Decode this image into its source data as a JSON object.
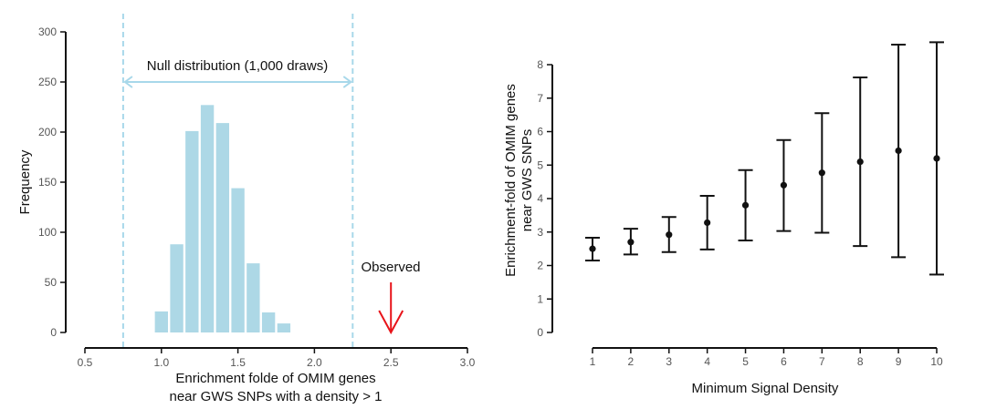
{
  "chart_data": [
    {
      "type": "bar",
      "title": "",
      "xlabel": [
        "Enrichment folde of OMIM genes",
        "near GWS SNPs with a density > 1"
      ],
      "ylabel": "Frequency",
      "xlim": [
        0.5,
        3.0
      ],
      "ylim": [
        0,
        300
      ],
      "x_ticks": [
        "0.5",
        "1.0",
        "1.5",
        "2.0",
        "2.5",
        "3.0"
      ],
      "y_ticks": [
        "0",
        "50",
        "100",
        "150",
        "200",
        "250",
        "300"
      ],
      "bin_width": 0.1,
      "bins": [
        {
          "x": 1.0,
          "value": 21
        },
        {
          "x": 1.1,
          "value": 88
        },
        {
          "x": 1.2,
          "value": 201
        },
        {
          "x": 1.3,
          "value": 227
        },
        {
          "x": 1.4,
          "value": 209
        },
        {
          "x": 1.5,
          "value": 144
        },
        {
          "x": 1.6,
          "value": 69
        },
        {
          "x": 1.7,
          "value": 20
        },
        {
          "x": 1.8,
          "value": 9
        }
      ],
      "bar_color": "#add8e6",
      "null_range": {
        "from": 0.75,
        "to": 2.25,
        "label": "Null distribution (1,000 draws)",
        "color": "#a8d8ea"
      },
      "observed": {
        "x": 2.5,
        "label": "Observed",
        "color": "#e8141a"
      },
      "grid": false
    },
    {
      "type": "scatter",
      "title": "",
      "xlabel": "Minimum Signal Density",
      "ylabel": [
        "Enrichment-fold of OMIM genes",
        "near GWS SNPs"
      ],
      "xlim": [
        1,
        10
      ],
      "ylim": [
        0,
        8
      ],
      "x_ticks": [
        "1",
        "2",
        "3",
        "4",
        "5",
        "6",
        "7",
        "8",
        "9",
        "10"
      ],
      "y_ticks": [
        "0",
        "1",
        "2",
        "3",
        "4",
        "5",
        "6",
        "7",
        "8"
      ],
      "points": [
        {
          "x": 1,
          "y": 2.5,
          "lower": 2.15,
          "upper": 2.83
        },
        {
          "x": 2,
          "y": 2.7,
          "lower": 2.33,
          "upper": 3.1
        },
        {
          "x": 3,
          "y": 2.92,
          "lower": 2.4,
          "upper": 3.45
        },
        {
          "x": 4,
          "y": 3.28,
          "lower": 2.48,
          "upper": 4.08
        },
        {
          "x": 5,
          "y": 3.8,
          "lower": 2.75,
          "upper": 4.85
        },
        {
          "x": 6,
          "y": 4.4,
          "lower": 3.03,
          "upper": 5.75
        },
        {
          "x": 7,
          "y": 4.77,
          "lower": 2.98,
          "upper": 6.55
        },
        {
          "x": 8,
          "y": 5.1,
          "lower": 2.58,
          "upper": 7.62
        },
        {
          "x": 9,
          "y": 5.43,
          "lower": 2.25,
          "upper": 8.6
        },
        {
          "x": 10,
          "y": 5.2,
          "lower": 1.73,
          "upper": 8.67
        }
      ],
      "grid": false
    }
  ]
}
